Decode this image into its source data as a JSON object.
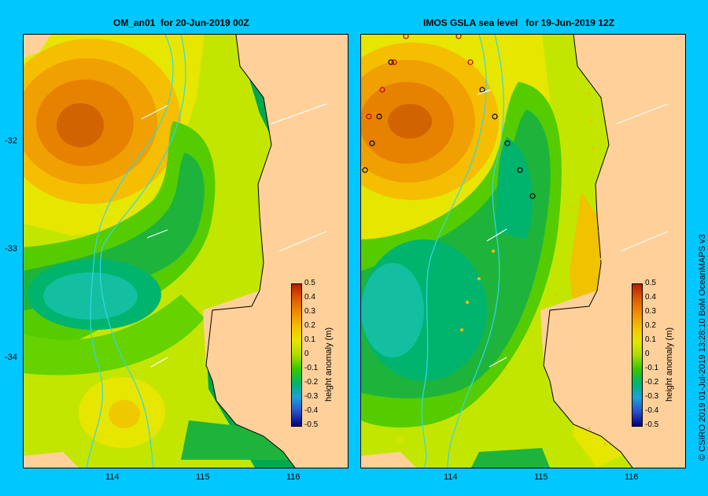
{
  "panels": [
    {
      "title": "OM_an01  for 20-Jun-2019 00Z"
    },
    {
      "title": "IMOS GSLA sea level   for 19-Jun-2019 12Z"
    }
  ],
  "axes": {
    "x_ticks": [
      "114",
      "115",
      "116"
    ],
    "y_ticks": [
      "-32",
      "-33",
      "-34"
    ]
  },
  "colorbar": {
    "label": "height anomaly (m)",
    "ticks": [
      "0.5",
      "0.4",
      "0.3",
      "0.2",
      "0.1",
      "0",
      "-0.1",
      "-0.2",
      "-0.3",
      "-0.4",
      "-0.5"
    ],
    "colors": [
      "#b41e00",
      "#dc5a00",
      "#f08c00",
      "#f5be00",
      "#e6e600",
      "#aadc00",
      "#37c800",
      "#00b46e",
      "#1ea0dc",
      "#2850c8",
      "#000078"
    ]
  },
  "map_colors": {
    "land": "#ffd09a",
    "coast": "#000000",
    "isobath": "#30d8e8",
    "arrow": "#ffffff"
  },
  "credit": "© CSIRO 2019   01-Jul-2019 13:28:10 BoM OceanMAPS v3"
}
